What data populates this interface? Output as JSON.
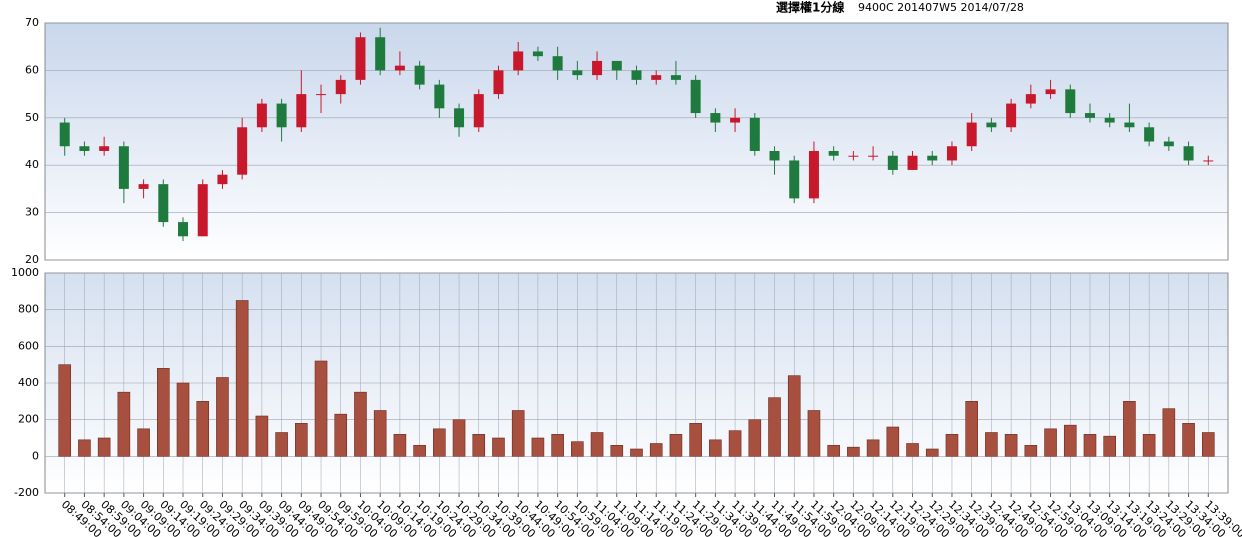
{
  "chart_data": [
    {
      "type": "candlestick",
      "title": "選擇權1分線",
      "subtitle": "9400C 201407W5 2014/07/28",
      "up_color": "#c8182c",
      "down_color": "#1f7a3e",
      "open": [
        49,
        44,
        43,
        44,
        35,
        36,
        28,
        25,
        36,
        38,
        48,
        53,
        48,
        55,
        55,
        58,
        67,
        60,
        61,
        57,
        52,
        48,
        55,
        60,
        64,
        63,
        60,
        59,
        62,
        60,
        58,
        59,
        58,
        51,
        49,
        50,
        43,
        41,
        33,
        43,
        42,
        42,
        42,
        39,
        42,
        41,
        44,
        49,
        48,
        53,
        55,
        56,
        51,
        50,
        49,
        48,
        45,
        44,
        41
      ],
      "high": [
        50,
        45,
        46,
        45,
        37,
        37,
        29,
        37,
        39,
        50,
        54,
        54,
        60,
        57,
        59,
        68,
        69,
        64,
        62,
        58,
        53,
        56,
        61,
        66,
        65,
        65,
        62,
        64,
        62,
        61,
        60,
        62,
        59,
        52,
        52,
        51,
        44,
        42,
        45,
        44,
        43,
        44,
        43,
        43,
        43,
        45,
        51,
        50,
        54,
        57,
        58,
        57,
        53,
        51,
        53,
        49,
        46,
        45,
        42
      ],
      "low": [
        42,
        42,
        42,
        32,
        33,
        27,
        24,
        25,
        35,
        37,
        47,
        45,
        47,
        51,
        53,
        57,
        59,
        59,
        56,
        50,
        46,
        47,
        54,
        59,
        62,
        58,
        58,
        58,
        58,
        57,
        57,
        57,
        50,
        47,
        47,
        42,
        38,
        32,
        32,
        41,
        41,
        41,
        38,
        39,
        40,
        40,
        43,
        47,
        47,
        52,
        54,
        50,
        49,
        48,
        47,
        44,
        43,
        40,
        40
      ],
      "close": [
        44,
        43,
        44,
        35,
        36,
        28,
        25,
        36,
        38,
        48,
        53,
        48,
        55,
        55,
        58,
        67,
        60,
        61,
        57,
        52,
        48,
        55,
        60,
        64,
        63,
        60,
        59,
        62,
        60,
        58,
        59,
        58,
        51,
        49,
        50,
        43,
        41,
        33,
        43,
        42,
        42,
        42,
        39,
        42,
        41,
        44,
        49,
        48,
        53,
        55,
        56,
        51,
        50,
        49,
        48,
        45,
        44,
        41,
        41
      ],
      "ylim": [
        20,
        70
      ],
      "yticks": [
        20,
        30,
        40,
        50,
        60,
        70
      ],
      "grid": true
    },
    {
      "type": "bar",
      "color": "#a8503f",
      "categories": [
        "08:49:00",
        "08:54:00",
        "08:59:00",
        "09:04:00",
        "09:09:00",
        "09:14:00",
        "09:19:00",
        "09:24:00",
        "09:29:00",
        "09:34:00",
        "09:39:00",
        "09:44:00",
        "09:49:00",
        "09:54:00",
        "09:59:00",
        "10:04:00",
        "10:09:00",
        "10:14:00",
        "10:19:00",
        "10:24:00",
        "10:29:00",
        "10:34:00",
        "10:39:00",
        "10:44:00",
        "10:49:00",
        "10:54:00",
        "10:59:00",
        "11:04:00",
        "11:09:00",
        "11:14:00",
        "11:19:00",
        "11:24:00",
        "11:29:00",
        "11:34:00",
        "11:39:00",
        "11:44:00",
        "11:49:00",
        "11:54:00",
        "11:59:00",
        "12:04:00",
        "12:09:00",
        "12:14:00",
        "12:19:00",
        "12:24:00",
        "12:29:00",
        "12:34:00",
        "12:39:00",
        "12:44:00",
        "12:49:00",
        "12:54:00",
        "12:59:00",
        "13:04:00",
        "13:09:00",
        "13:14:00",
        "13:19:00",
        "13:24:00",
        "13:29:00",
        "13:34:00",
        "13:39:00"
      ],
      "values": [
        500,
        90,
        100,
        350,
        150,
        480,
        400,
        300,
        430,
        850,
        220,
        130,
        180,
        520,
        230,
        350,
        250,
        120,
        60,
        150,
        200,
        120,
        100,
        250,
        100,
        120,
        80,
        130,
        60,
        40,
        70,
        120,
        180,
        90,
        140,
        200,
        320,
        440,
        250,
        60,
        50,
        90,
        160,
        70,
        40,
        120,
        300,
        130,
        120,
        60,
        150,
        170,
        120,
        110,
        300,
        120,
        260,
        180,
        130
      ],
      "ylim": [
        -200,
        1000
      ],
      "yticks": [
        -200,
        0,
        200,
        400,
        600,
        800,
        1000
      ],
      "grid": true
    }
  ]
}
